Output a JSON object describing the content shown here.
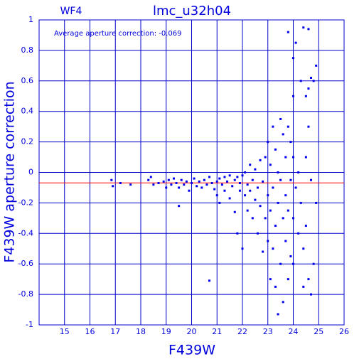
{
  "chart_data": {
    "type": "scatter",
    "title": "lmc_u32h04",
    "subtitle": "WF4",
    "annotation": "Average aperture correction: -0.069",
    "mean": -0.069,
    "mean_color": "#ff0000",
    "xlabel": "F439W",
    "ylabel": "F439W aperture correction",
    "color": "#0000ee",
    "grid": true,
    "xlim": [
      14,
      26
    ],
    "xticks": [
      15,
      16,
      17,
      18,
      19,
      20,
      21,
      22,
      23,
      24,
      25,
      26
    ],
    "ylim": [
      -1,
      1
    ],
    "yticks": [
      -1,
      -0.8,
      -0.6,
      -0.4,
      -0.2,
      0,
      0.2,
      0.4,
      0.6,
      0.8,
      1
    ],
    "x": [
      16.85,
      16.9,
      17.2,
      17.6,
      18.3,
      18.4,
      18.5,
      18.7,
      18.9,
      19.0,
      19.1,
      19.2,
      19.3,
      19.4,
      19.5,
      19.5,
      19.6,
      19.7,
      19.8,
      19.9,
      20.0,
      20.1,
      20.2,
      20.3,
      20.4,
      20.5,
      20.6,
      20.7,
      20.7,
      20.8,
      20.9,
      21.0,
      21.0,
      21.1,
      21.1,
      21.2,
      21.3,
      21.3,
      21.4,
      21.5,
      21.5,
      21.6,
      21.7,
      21.7,
      21.8,
      21.8,
      21.9,
      21.9,
      22.0,
      22.0,
      22.1,
      22.1,
      22.2,
      22.2,
      22.3,
      22.3,
      22.4,
      22.4,
      22.5,
      22.5,
      22.6,
      22.6,
      22.7,
      22.7,
      22.8,
      22.8,
      22.9,
      22.9,
      23.0,
      23.0,
      23.0,
      23.1,
      23.1,
      23.1,
      23.2,
      23.2,
      23.2,
      23.3,
      23.3,
      23.3,
      23.4,
      23.4,
      23.4,
      23.5,
      23.5,
      23.5,
      23.6,
      23.6,
      23.6,
      23.7,
      23.7,
      23.7,
      23.8,
      23.8,
      23.8,
      23.8,
      23.9,
      23.9,
      23.9,
      24.0,
      24.0,
      24.0,
      24.0,
      24.0,
      24.1,
      24.1,
      24.2,
      24.2,
      24.3,
      24.3,
      24.4,
      24.4,
      24.5,
      24.5,
      24.5,
      24.6,
      24.6,
      24.6,
      24.7,
      24.7,
      24.7,
      24.8,
      24.8,
      24.9,
      24.9,
      24.4,
      24.6
    ],
    "y": [
      -0.05,
      -0.09,
      -0.07,
      -0.08,
      -0.05,
      -0.03,
      -0.08,
      -0.07,
      -0.06,
      -0.1,
      -0.05,
      -0.08,
      -0.04,
      -0.07,
      -0.1,
      -0.22,
      -0.05,
      -0.08,
      -0.06,
      -0.12,
      -0.07,
      -0.04,
      -0.09,
      -0.06,
      -0.1,
      -0.05,
      -0.08,
      -0.03,
      -0.71,
      -0.07,
      -0.11,
      -0.06,
      -0.15,
      -0.04,
      -0.2,
      -0.08,
      -0.03,
      -0.12,
      -0.06,
      -0.02,
      -0.17,
      -0.09,
      -0.05,
      -0.26,
      -0.03,
      -0.4,
      -0.12,
      -0.07,
      -0.02,
      -0.5,
      -0.15,
      0.0,
      -0.08,
      -0.25,
      0.05,
      -0.12,
      -0.3,
      -0.05,
      0.02,
      -0.18,
      -0.4,
      -0.1,
      0.08,
      -0.22,
      -0.52,
      -0.06,
      0.1,
      -0.3,
      0.2,
      -0.15,
      -0.45,
      0.05,
      -0.25,
      -0.7,
      0.3,
      -0.1,
      -0.5,
      0.15,
      -0.35,
      -0.75,
      0.0,
      -0.2,
      -0.93,
      0.35,
      -0.05,
      -0.6,
      0.25,
      -0.3,
      -0.85,
      0.1,
      -0.15,
      -0.45,
      0.92,
      0.3,
      -0.25,
      -0.7,
      0.2,
      -0.05,
      -0.55,
      0.75,
      0.5,
      0.1,
      -0.3,
      -0.6,
      0.85,
      -0.1,
      0.0,
      -0.4,
      0.6,
      -0.2,
      0.95,
      -0.5,
      0.5,
      0.1,
      -0.35,
      0.94,
      0.3,
      -0.7,
      0.62,
      -0.05,
      -0.8,
      0.6,
      -0.6,
      0.7,
      -0.2,
      -0.75,
      0.55
    ]
  }
}
